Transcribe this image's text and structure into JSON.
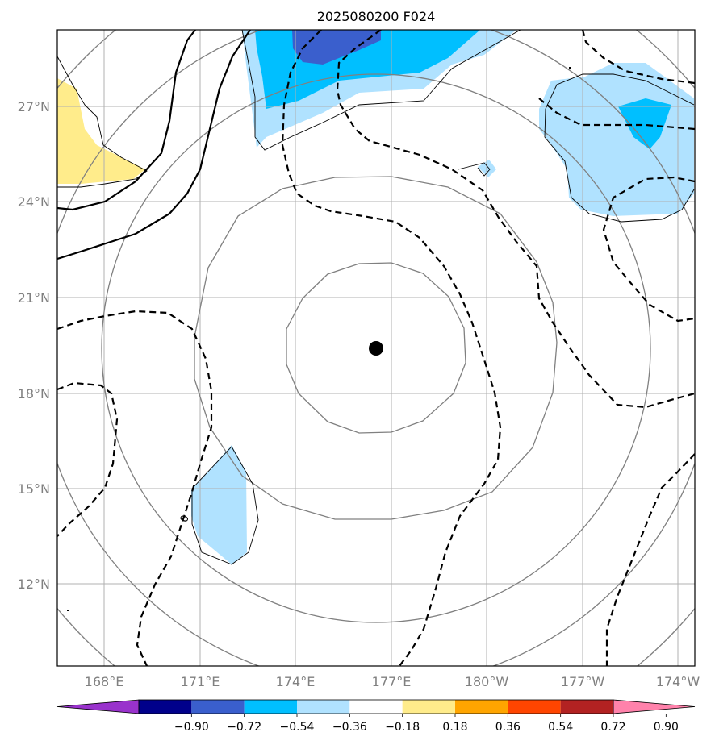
{
  "chart_data": {
    "type": "map-contour",
    "title": "2025080200 F024",
    "x_ticks": [
      "168°E",
      "171°E",
      "174°E",
      "177°E",
      "180°W",
      "177°W",
      "174°W"
    ],
    "x_tick_lon": [
      168,
      171,
      174,
      177,
      180,
      183,
      186
    ],
    "y_ticks": [
      "12°N",
      "15°N",
      "18°N",
      "21°N",
      "24°N",
      "27°N"
    ],
    "y_tick_lat": [
      12,
      15,
      18,
      21,
      24,
      27
    ],
    "lon_range": [
      166.6,
      186.7
    ],
    "lat_range": [
      10.0,
      29.0
    ],
    "center_marker": {
      "lon": 176.5,
      "lat": 19.4
    },
    "range_rings_deg": [
      3,
      6,
      9,
      12,
      15
    ],
    "contour_label": "0",
    "grid": true,
    "colorbar": {
      "levels": [
        "−0.90",
        "−0.72",
        "−0.54",
        "−0.36",
        "−0.18",
        "0.18",
        "0.36",
        "0.54",
        "0.72",
        "0.90"
      ],
      "colors": [
        "#9932cc",
        "#00008b",
        "#3a5fcd",
        "#00bfff",
        "#b0e2ff",
        "#ffffff",
        "#ffec8b",
        "#ffa500",
        "#ff4500",
        "#b22222",
        "#ff82ab"
      ],
      "extend": "both"
    }
  }
}
